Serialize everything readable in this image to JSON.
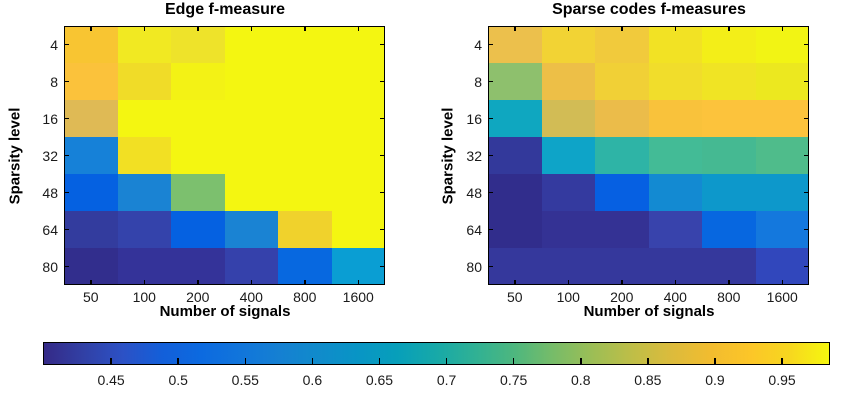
{
  "figure": {
    "background": "#ffffff",
    "description": "Two MATLAB-style heatmaps sharing a horizontal parula colorbar"
  },
  "chart_data": [
    {
      "type": "heatmap",
      "title": "Edge f-measure",
      "xlabel": "Number of signals",
      "ylabel": "Sparsity level",
      "x_ticklabels": [
        "50",
        "100",
        "200",
        "400",
        "800",
        "1600"
      ],
      "y_ticklabels": [
        "4",
        "8",
        "16",
        "32",
        "48",
        "64",
        "80"
      ],
      "values": [
        [
          0.93,
          0.96,
          0.955,
          0.98,
          0.98,
          0.98
        ],
        [
          0.93,
          0.95,
          0.97,
          0.98,
          0.98,
          0.98
        ],
        [
          0.89,
          0.98,
          0.98,
          0.98,
          0.98,
          0.98
        ],
        [
          0.6,
          0.96,
          0.98,
          0.98,
          0.98,
          0.98
        ],
        [
          0.52,
          0.6,
          0.81,
          0.98,
          0.98,
          0.98
        ],
        [
          0.44,
          0.46,
          0.52,
          0.6,
          0.94,
          0.98
        ],
        [
          0.41,
          0.43,
          0.43,
          0.46,
          0.53,
          0.66
        ]
      ],
      "cell_colors": [
        [
          "#f8c532",
          "#f1e922",
          "#eee32a",
          "#f4f611",
          "#f4f611",
          "#f4f611"
        ],
        [
          "#fbc23b",
          "#f0dc28",
          "#f3f215",
          "#f4f611",
          "#f4f611",
          "#f4f611"
        ],
        [
          "#dfba55",
          "#f4f611",
          "#f4f611",
          "#f4f611",
          "#f4f611",
          "#f4f611"
        ],
        [
          "#1681d8",
          "#f2e023",
          "#f4f611",
          "#f4f611",
          "#f4f611",
          "#f4f611"
        ],
        [
          "#0561e1",
          "#1a83d3",
          "#7cc06e",
          "#f4f611",
          "#f4f611",
          "#f4f611"
        ],
        [
          "#333c9e",
          "#3443ab",
          "#0561e1",
          "#1a83d3",
          "#f0d22c",
          "#f4f611"
        ],
        [
          "#322e8d",
          "#343399",
          "#343399",
          "#3541ab",
          "#0768e0",
          "#0a9ed3"
        ]
      ]
    },
    {
      "type": "heatmap",
      "title": "Sparse codes f-measures",
      "xlabel": "Number of signals",
      "ylabel": "Sparsity level",
      "x_ticklabels": [
        "50",
        "100",
        "200",
        "400",
        "800",
        "1600"
      ],
      "y_ticklabels": [
        "4",
        "8",
        "16",
        "32",
        "48",
        "64",
        "80"
      ],
      "values": [
        [
          0.91,
          0.945,
          0.94,
          0.96,
          0.975,
          0.98
        ],
        [
          0.82,
          0.91,
          0.945,
          0.955,
          0.96,
          0.965
        ],
        [
          0.69,
          0.88,
          0.91,
          0.925,
          0.93,
          0.93
        ],
        [
          0.44,
          0.68,
          0.73,
          0.76,
          0.76,
          0.77
        ],
        [
          0.41,
          0.44,
          0.52,
          0.62,
          0.65,
          0.65
        ],
        [
          0.41,
          0.43,
          0.43,
          0.46,
          0.53,
          0.57
        ],
        [
          0.44,
          0.44,
          0.44,
          0.44,
          0.44,
          0.47
        ]
      ],
      "cell_colors": [
        [
          "#ecc04c",
          "#f2d334",
          "#f1ca3c",
          "#f2e224",
          "#f3ee18",
          "#f2f414"
        ],
        [
          "#8ec06d",
          "#edbf47",
          "#f1d036",
          "#f1dd2b",
          "#f0e424",
          "#ece81f"
        ],
        [
          "#0fa7c0",
          "#d2bc55",
          "#ebbc4a",
          "#f9c23b",
          "#fcc33c",
          "#fcc33c"
        ],
        [
          "#33399b",
          "#0ea4c8",
          "#2eb4a6",
          "#43bb96",
          "#45b992",
          "#4fbc8b"
        ],
        [
          "#312d8c",
          "#343a9f",
          "#0660e2",
          "#138ad2",
          "#0d98cb",
          "#0d98cb"
        ],
        [
          "#312d8c",
          "#343294",
          "#343294",
          "#3843ac",
          "#0767e0",
          "#1478dd"
        ],
        [
          "#35389c",
          "#35389c",
          "#35389c",
          "#35389c",
          "#35389c",
          "#3147bc"
        ]
      ]
    },
    {
      "type": "colorbar",
      "orientation": "horizontal",
      "colormap_name": "parula",
      "min": 0.4,
      "max": 0.985,
      "tick_labels": [
        "0.45",
        "0.5",
        "0.55",
        "0.6",
        "0.65",
        "0.7",
        "0.75",
        "0.8",
        "0.85",
        "0.9",
        "0.95"
      ],
      "tick_values": [
        0.45,
        0.5,
        0.55,
        0.6,
        0.65,
        0.7,
        0.75,
        0.8,
        0.85,
        0.9,
        0.95
      ],
      "gradient_stops": [
        "#352a87",
        "#3140a5",
        "#2c51c5",
        "#135fd9",
        "#0c6ae0",
        "#1175db",
        "#1580d2",
        "#108bcb",
        "#0895c5",
        "#079fba",
        "#17a9a8",
        "#30b194",
        "#4eb77e",
        "#78bc68",
        "#9dbe55",
        "#bfbe47",
        "#dcbb3c",
        "#f2bc2f",
        "#fcc628",
        "#f7d71f",
        "#f6f70f"
      ]
    }
  ]
}
